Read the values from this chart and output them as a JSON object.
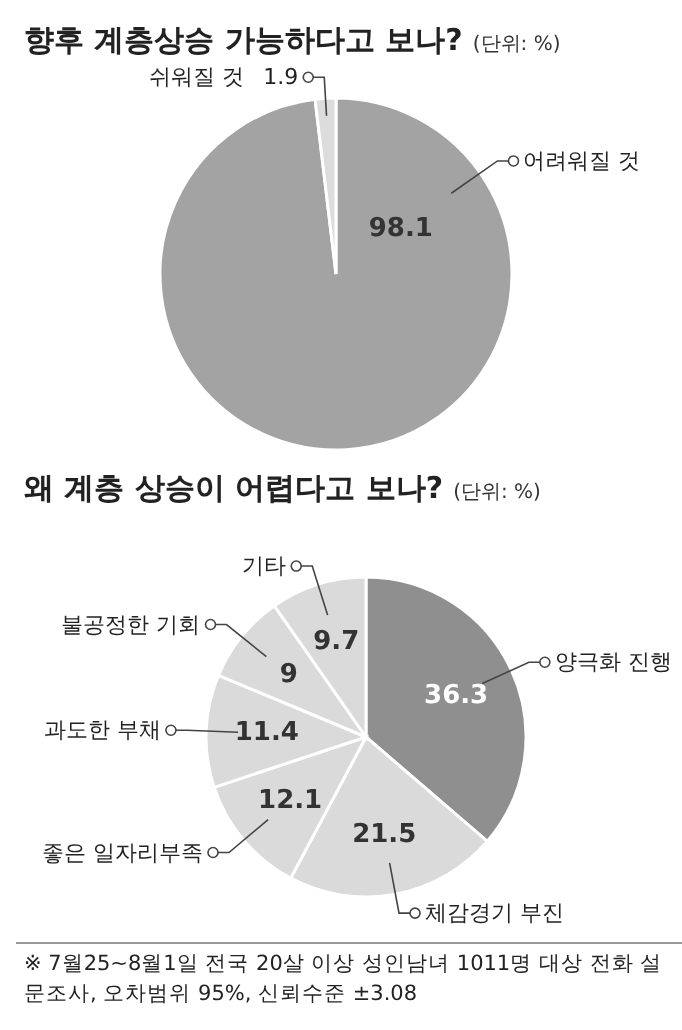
{
  "chart_data": [
    {
      "type": "pie",
      "title": "향후 계층상승 가능하다고 보나?",
      "subtitle": "(단위: %)",
      "categories": [
        "어려워질 것",
        "쉬워질 것"
      ],
      "values": [
        98.1,
        1.9
      ],
      "colors": [
        "#a3a3a3",
        "#dcdcdc"
      ],
      "data_labels": true
    },
    {
      "type": "pie",
      "title": "왜 계층 상승이 어렵다고 보나?",
      "subtitle": "(단위: %)",
      "categories": [
        "양극화 진행",
        "체감경기 부진",
        "좋은 일자리부족",
        "과도한 부채",
        "불공정한 기회",
        "기타"
      ],
      "values": [
        36.3,
        21.5,
        12.1,
        11.4,
        9.0,
        9.7
      ],
      "colors": [
        "#8f8f8f",
        "#dadada",
        "#dadada",
        "#dadada",
        "#dadada",
        "#dadada"
      ],
      "data_labels": true,
      "annotations": [
        "※ 7월25~8월1일 전국 20살 이상 성인남녀 1011명 대상 전화 설문조사, 오차범위 95%, 신뢰수준 ±3.08"
      ]
    }
  ]
}
